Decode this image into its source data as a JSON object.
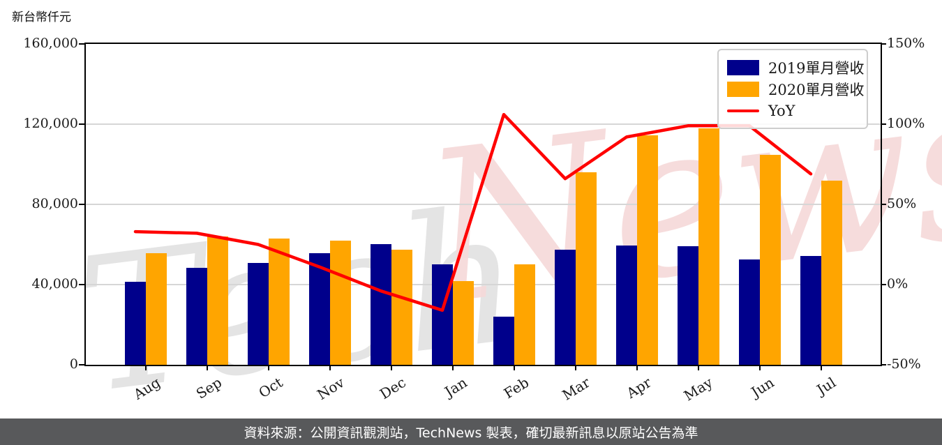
{
  "title": "新台幣仟元",
  "watermark": {
    "part1": "Tech",
    "part2": "News"
  },
  "legend": [
    {
      "label": "2019單月營收",
      "color": "#00008B",
      "type": "bar"
    },
    {
      "label": "2020單月營收",
      "color": "#FFA500",
      "type": "bar"
    },
    {
      "label": "YoY",
      "color": "#FF0000",
      "type": "line"
    }
  ],
  "footer": {
    "text": "資料來源：公開資訊觀測站，TechNews 製表，確切最新訊息以原站公告為準",
    "bg": "#58595b"
  },
  "colors": {
    "bar2019": "#00008B",
    "bar2020": "#FFA500",
    "yoy_line": "#FF0000",
    "grid": "#d6d6d6",
    "footer_bg": "#58595b"
  },
  "chart_data": {
    "type": "bar",
    "title": "新台幣仟元",
    "categories": [
      "Aug",
      "Sep",
      "Oct",
      "Nov",
      "Dec",
      "Jan",
      "Feb",
      "Mar",
      "Apr",
      "May",
      "Jun",
      "Jul"
    ],
    "series": [
      {
        "name": "2019單月營收",
        "type": "bar",
        "axis": "left",
        "color": "#00008B",
        "values": [
          41300,
          48400,
          50700,
          55600,
          60200,
          50200,
          24100,
          57400,
          59500,
          59000,
          52400,
          54400
        ]
      },
      {
        "name": "2020單月營收",
        "type": "bar",
        "axis": "left",
        "color": "#FFA500",
        "values": [
          55600,
          63900,
          62800,
          62000,
          57400,
          41600,
          50100,
          95900,
          114300,
          118000,
          104800,
          91800
        ]
      },
      {
        "name": "YoY",
        "type": "line",
        "axis": "right",
        "color": "#FF0000",
        "unit": "%",
        "values": [
          33,
          32,
          25,
          11,
          -4,
          -16,
          106,
          66,
          92,
          99,
          99,
          69
        ]
      }
    ],
    "left_axis": {
      "label": "新台幣仟元",
      "min": 0,
      "max": 160000,
      "tick_values": [
        160000,
        120000,
        80000,
        40000,
        0
      ],
      "tick_labels": [
        "160,000",
        "120,000",
        "80,000",
        "40,000",
        "0"
      ],
      "grid_values": [
        120000,
        80000,
        40000
      ]
    },
    "right_axis": {
      "min": -50,
      "max": 150,
      "tick_values": [
        150,
        100,
        50,
        0,
        -50
      ],
      "tick_labels": [
        "150%",
        "100%",
        "50%",
        "0%",
        "-50%"
      ]
    },
    "legend_position": "upper right",
    "grid": true
  }
}
